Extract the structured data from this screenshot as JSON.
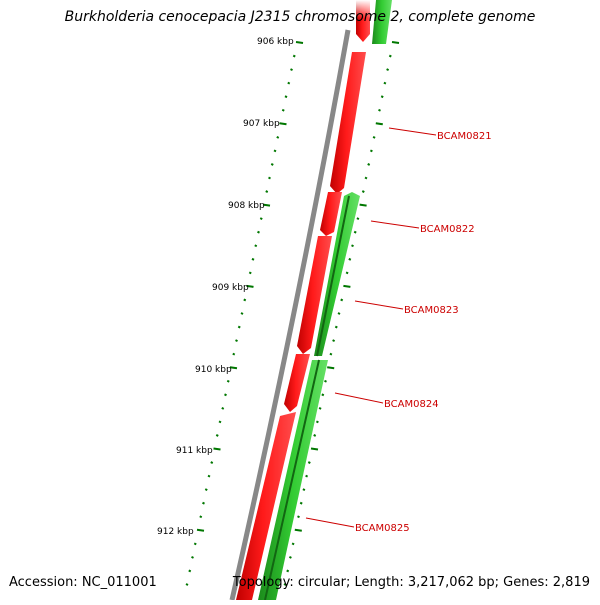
{
  "title": "Burkholderia cenocepacia J2315 chromosome 2, complete genome",
  "footer": {
    "accession": "Accession: NC_011001",
    "summary": "Topology: circular; Length: 3,217,062 bp; Genes: 2,819"
  },
  "scale_ticks": [
    "906 kbp",
    "907 kbp",
    "908 kbp",
    "909 kbp",
    "910 kbp",
    "911 kbp",
    "912 kbp"
  ],
  "genes": [
    {
      "name": "BCAM0821",
      "strand": "reverse"
    },
    {
      "name": "BCAM0822",
      "strand": "forward"
    },
    {
      "name": "BCAM0823",
      "strand": "forward"
    },
    {
      "name": "BCAM0824",
      "strand": "forward"
    },
    {
      "name": "BCAM0825",
      "strand": "forward"
    }
  ],
  "colors": {
    "forward_feature": "#2ecc2e",
    "reverse_feature": "#ff0000",
    "label": "#cc0000",
    "tick": "#007700",
    "backbone": "#888888"
  }
}
